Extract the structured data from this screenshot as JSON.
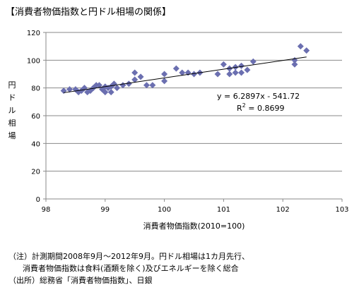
{
  "title": "【消費者物価指数と円ドル相場の関係】",
  "chart_data": {
    "type": "scatter",
    "title": "【消費者物価指数と円ドル相場の関係】",
    "xlabel": "消費者物価指数(2010=100)",
    "ylabel": "円ドル相場",
    "xlim": [
      98,
      103
    ],
    "ylim": [
      0,
      120
    ],
    "xticks": [
      "98",
      "99",
      "100",
      "101",
      "102",
      "103"
    ],
    "yticks": [
      "0",
      "20",
      "40",
      "60",
      "80",
      "100",
      "120"
    ],
    "grid": "horizontal",
    "marker_color": "#6b6fb0",
    "marker": "diamond",
    "points": [
      [
        98.3,
        78
      ],
      [
        98.4,
        79
      ],
      [
        98.5,
        79
      ],
      [
        98.55,
        77
      ],
      [
        98.6,
        78
      ],
      [
        98.65,
        80
      ],
      [
        98.7,
        77
      ],
      [
        98.75,
        78
      ],
      [
        98.8,
        80
      ],
      [
        98.85,
        82
      ],
      [
        98.9,
        82
      ],
      [
        98.95,
        79
      ],
      [
        99.0,
        77
      ],
      [
        99.0,
        81
      ],
      [
        99.05,
        80
      ],
      [
        99.1,
        77
      ],
      [
        99.1,
        81
      ],
      [
        99.15,
        83
      ],
      [
        99.2,
        80
      ],
      [
        99.3,
        82
      ],
      [
        99.4,
        83
      ],
      [
        99.5,
        86
      ],
      [
        99.5,
        91
      ],
      [
        99.6,
        88
      ],
      [
        99.7,
        82
      ],
      [
        99.8,
        82
      ],
      [
        100.0,
        85
      ],
      [
        100.0,
        90
      ],
      [
        100.2,
        94
      ],
      [
        100.3,
        91
      ],
      [
        100.4,
        91
      ],
      [
        100.5,
        90
      ],
      [
        100.6,
        91
      ],
      [
        100.9,
        90
      ],
      [
        101.0,
        97
      ],
      [
        101.1,
        90
      ],
      [
        101.1,
        94
      ],
      [
        101.2,
        91
      ],
      [
        101.2,
        95
      ],
      [
        101.3,
        91
      ],
      [
        101.3,
        96
      ],
      [
        101.4,
        93
      ],
      [
        101.5,
        99
      ],
      [
        102.2,
        97
      ],
      [
        102.2,
        100
      ],
      [
        102.3,
        110
      ],
      [
        102.4,
        107
      ]
    ],
    "trendline": {
      "type": "linear",
      "slope": 6.2897,
      "intercept": -541.72,
      "x_range": [
        98.3,
        102.4
      ],
      "equation": "y = 6.2897x - 541.72",
      "r2_label": "R",
      "r2_sup": "2",
      "r2_value": " = 0.8699"
    }
  },
  "notes": {
    "line1": "（注）計測期間2008年9月～2012年9月。円ドル相場は1カ月先行、",
    "line2": "消費者物価指数は食料(酒類を除く)及びエネルギーを除く総合",
    "line3": "（出所）総務省「消費者物価指数」、日銀"
  }
}
